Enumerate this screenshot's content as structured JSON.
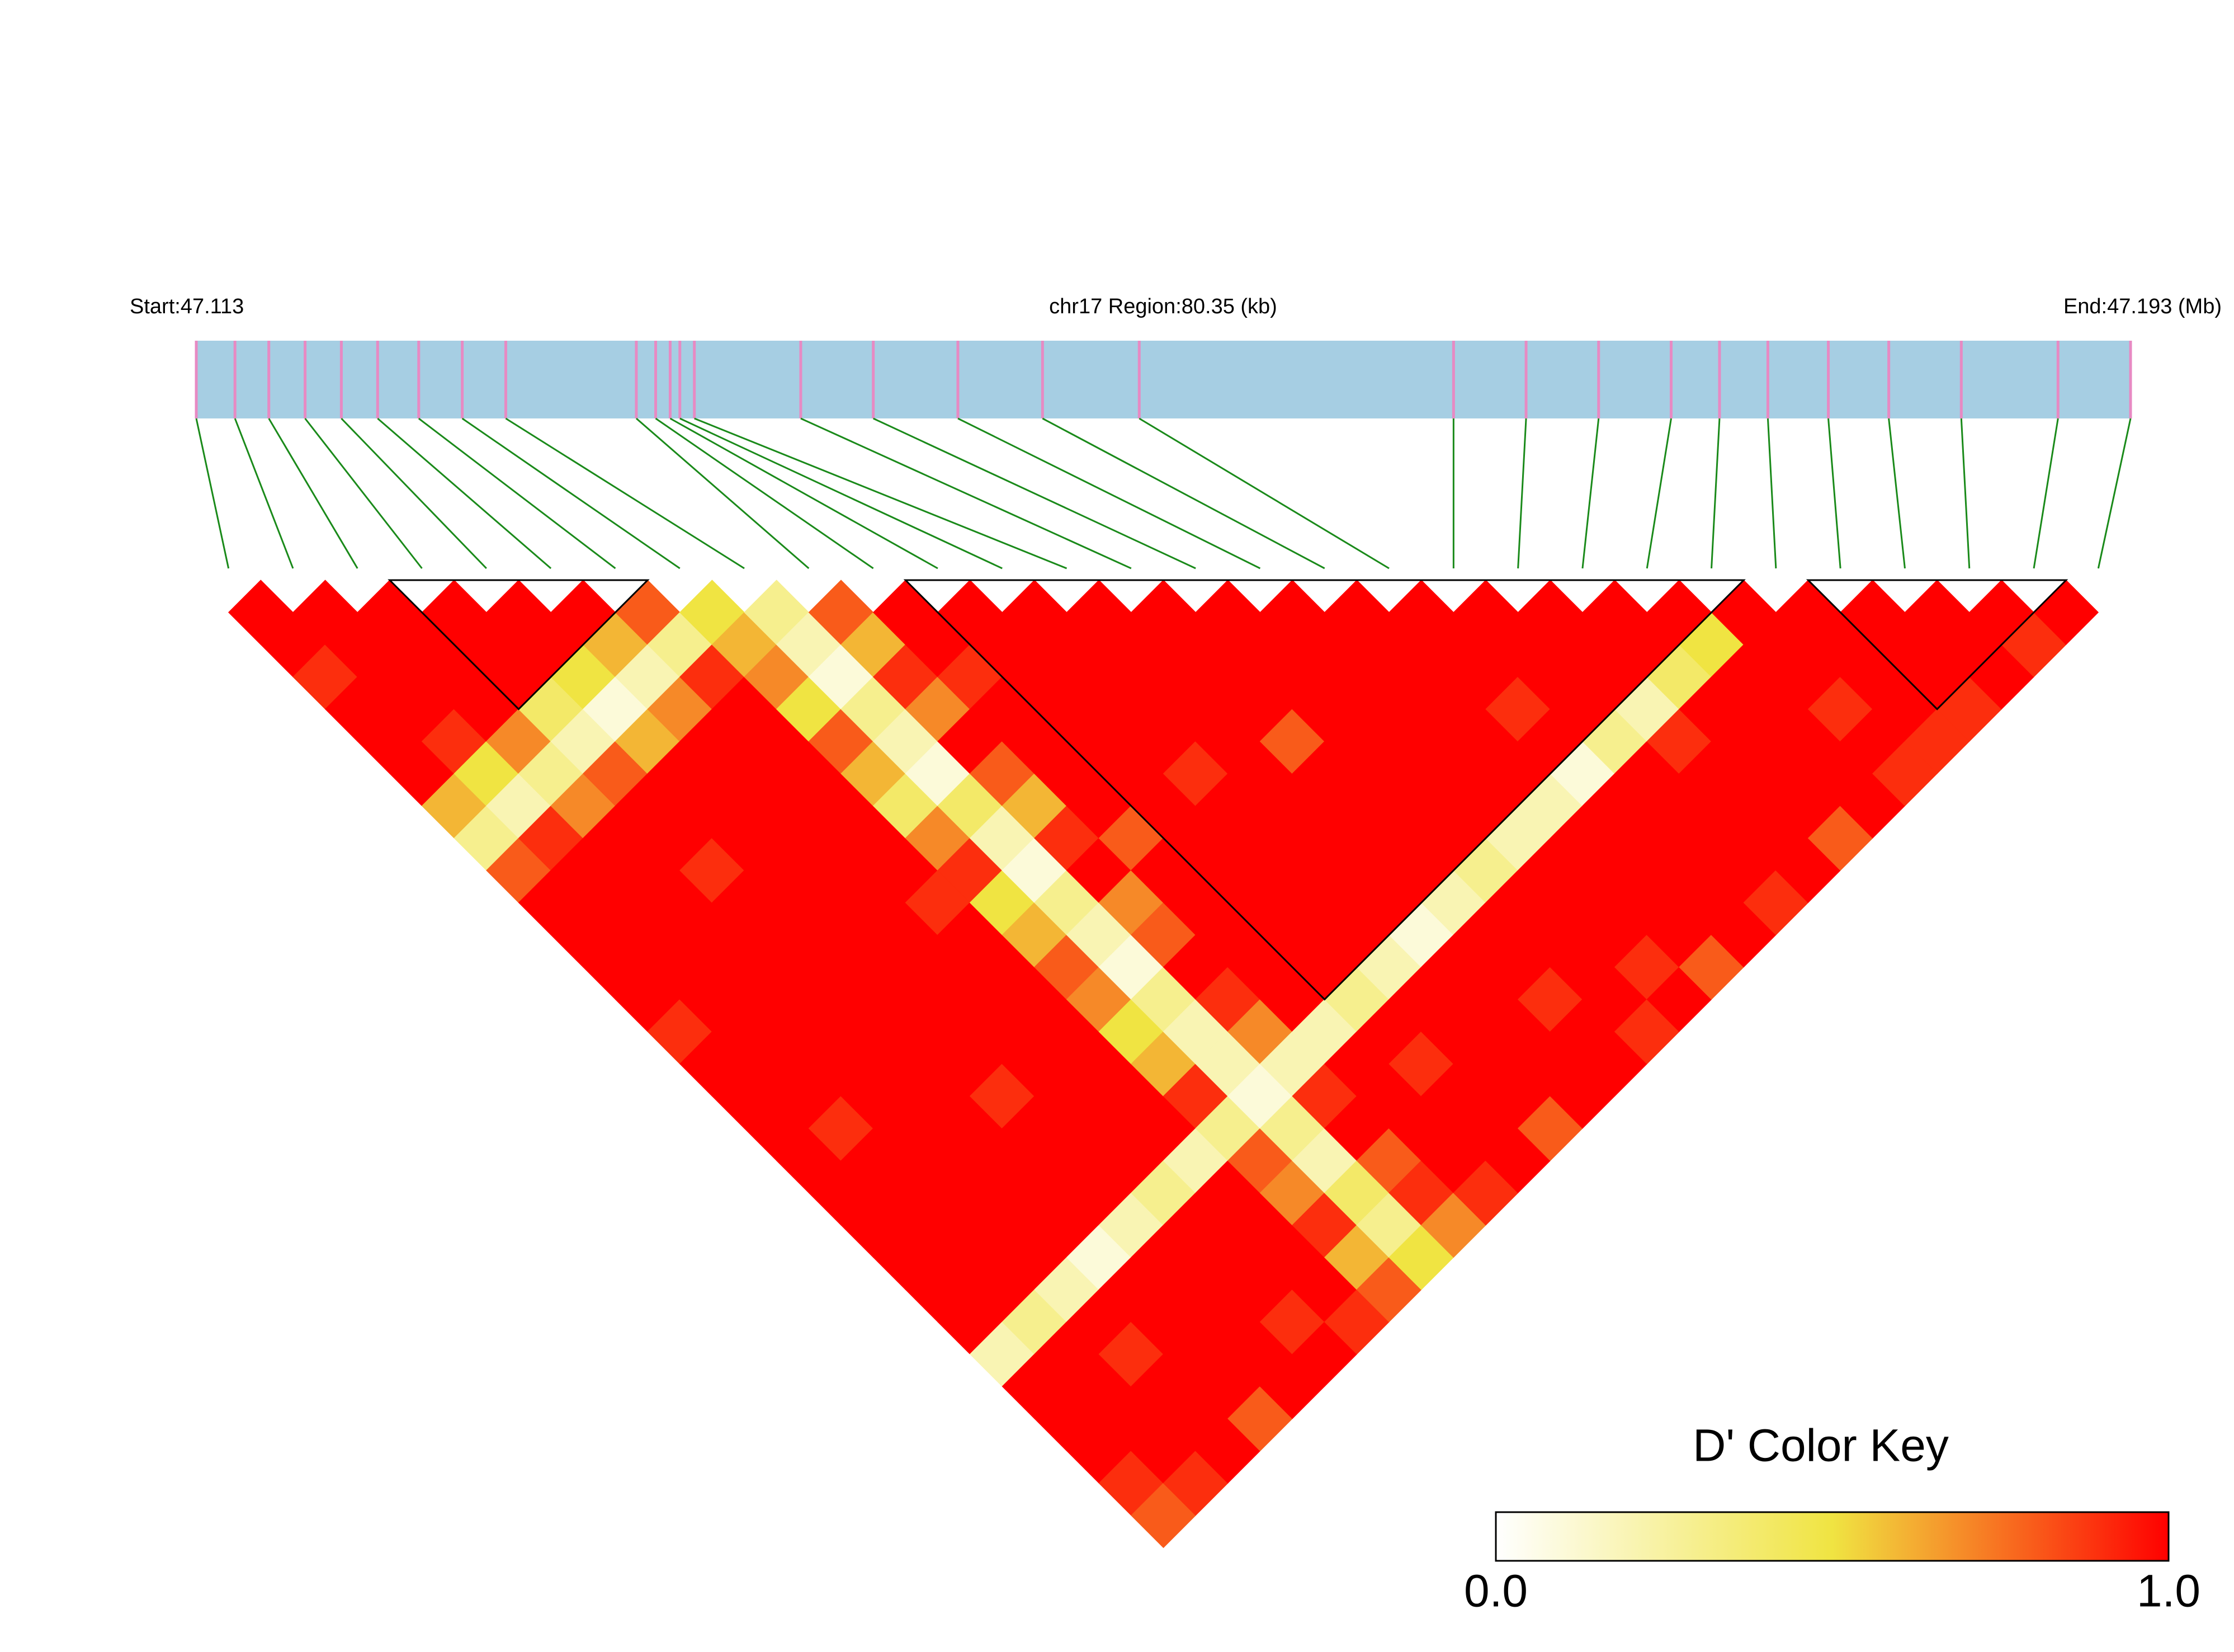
{
  "chart_data": {
    "type": "ld-heatmap",
    "start_label": "Start:47.113",
    "region_label": "chr17 Region:80.35 (kb)",
    "end_label": "End:47.193 (Mb)",
    "xlim": [
      47.113,
      47.193
    ],
    "snp_positions": [
      47.113,
      47.1146,
      47.116,
      47.1175,
      47.119,
      47.1205,
      47.1222,
      47.124,
      47.1258,
      47.1312,
      47.132,
      47.1326,
      47.133,
      47.1336,
      47.138,
      47.141,
      47.1445,
      47.148,
      47.152,
      47.165,
      47.168,
      47.171,
      47.174,
      47.176,
      47.178,
      47.1805,
      47.183,
      47.186,
      47.19,
      47.193
    ],
    "dprime": [
      [
        1,
        1,
        0.9,
        1,
        1,
        1,
        0.6,
        0.3,
        0.8,
        1,
        1,
        1,
        1,
        0.9,
        1,
        1,
        1,
        1,
        1,
        1,
        1,
        1,
        1,
        0.2,
        1,
        1,
        1,
        0.9,
        0.8
      ],
      [
        1,
        1,
        1,
        1,
        0.9,
        0.5,
        0.2,
        0.9,
        1,
        1,
        1,
        1,
        1,
        1,
        1,
        1,
        0.9,
        1,
        1,
        1,
        1,
        1,
        0.3,
        1,
        1,
        1,
        1,
        0.9
      ],
      [
        1,
        1,
        1,
        1,
        0.7,
        0.3,
        0.7,
        1,
        1,
        1,
        1,
        1,
        1,
        1,
        1,
        1,
        1,
        1,
        1,
        1,
        1,
        0.2,
        1,
        0.9,
        1,
        1,
        1
      ],
      [
        1,
        1,
        1,
        0.4,
        0.2,
        0.8,
        1,
        1,
        0.9,
        1,
        1,
        1,
        1,
        1,
        1,
        1,
        1,
        1,
        1,
        1,
        0.1,
        1,
        1,
        1,
        1,
        0.8
      ],
      [
        1,
        1,
        0.5,
        0.1,
        0.6,
        1,
        1,
        1,
        1,
        1,
        1,
        1,
        1,
        1,
        1,
        0.9,
        1,
        1,
        1,
        0.2,
        1,
        1,
        1,
        1,
        1
      ],
      [
        1,
        0.6,
        0.2,
        0.7,
        1,
        1,
        1,
        1,
        1,
        1,
        1,
        1,
        1,
        1,
        1,
        1,
        1,
        1,
        0.3,
        1,
        1,
        1,
        0.9,
        1
      ],
      [
        0.8,
        0.3,
        0.9,
        1,
        1,
        1,
        1,
        1,
        1,
        0.9,
        1,
        1,
        1,
        1,
        1,
        1,
        1,
        0.2,
        1,
        1,
        1,
        1,
        0.9
      ],
      [
        0.5,
        0.6,
        0.7,
        0.5,
        0.8,
        0.6,
        0.4,
        0.7,
        0.9,
        0.5,
        0.6,
        0.8,
        0.7,
        0.5,
        0.6,
        0.9,
        0.3,
        0.8,
        0.7,
        0.9,
        0.6,
        0.8
      ],
      [
        0.3,
        0.2,
        0.1,
        0.3,
        0.2,
        0.1,
        0.4,
        0.2,
        0.1,
        0.3,
        0.2,
        0.1,
        0.3,
        0.2,
        0.2,
        0.1,
        0.3,
        0.2,
        0.4,
        0.3,
        0.5
      ],
      [
        0.8,
        0.6,
        0.9,
        0.7,
        1,
        0.8,
        0.6,
        0.9,
        1,
        0.7,
        0.8,
        1,
        0.9,
        0.7,
        0.2,
        0.9,
        1,
        0.8,
        0.9,
        0.7
      ],
      [
        1,
        1,
        0.9,
        1,
        1,
        1,
        1,
        0.8,
        1,
        1,
        1,
        1,
        1,
        0.2,
        1,
        1,
        1,
        1,
        0.9
      ],
      [
        1,
        1,
        1,
        1,
        1,
        1,
        1,
        1,
        1,
        1,
        1,
        1,
        0.3,
        1,
        0.9,
        1,
        1,
        1
      ],
      [
        1,
        1,
        1,
        1,
        1,
        0.9,
        1,
        1,
        1,
        1,
        1,
        0.2,
        1,
        1,
        1,
        1,
        0.8
      ],
      [
        1,
        1,
        1,
        1,
        1,
        1,
        1,
        1,
        1,
        1,
        0.1,
        1,
        1,
        1,
        1,
        1
      ],
      [
        1,
        1,
        1,
        1,
        0.8,
        1,
        1,
        1,
        1,
        0.2,
        1,
        1,
        0.9,
        1,
        1
      ],
      [
        1,
        1,
        1,
        1,
        1,
        1,
        1,
        1,
        0.3,
        1,
        1,
        1,
        1,
        0.9
      ],
      [
        1,
        1,
        1,
        1,
        1,
        1,
        1,
        0.2,
        1,
        1,
        1,
        0.9,
        1
      ],
      [
        1,
        1,
        1,
        1,
        1,
        1,
        0.2,
        1,
        1,
        1,
        1,
        0.8
      ],
      [
        1,
        1,
        1,
        0.9,
        1,
        0.1,
        1,
        1,
        1,
        1,
        1
      ],
      [
        1,
        1,
        1,
        1,
        0.3,
        1,
        1,
        1,
        1,
        0.9
      ],
      [
        1,
        1,
        1,
        0.2,
        0.9,
        1,
        1,
        1,
        1
      ],
      [
        1,
        1,
        0.4,
        1,
        1,
        1,
        1,
        0.8
      ],
      [
        1,
        0.5,
        1,
        1,
        1,
        1,
        1
      ],
      [
        1,
        1,
        1,
        0.9,
        1,
        0.9
      ],
      [
        1,
        1,
        1,
        1,
        0.9
      ],
      [
        1,
        1,
        1,
        0.9
      ],
      [
        1,
        1,
        1
      ],
      [
        1,
        0.9
      ],
      [
        1
      ]
    ],
    "blocks": [
      [
        3,
        6
      ],
      [
        11,
        23
      ],
      [
        25,
        28
      ]
    ],
    "band_color": "#a6cee3",
    "snp_line_color": "#e78ac3",
    "connector_color": "#1a8a1a",
    "colorkey": {
      "title": "D' Color Key",
      "lim": [
        0,
        1
      ],
      "ticks": [
        {
          "value": 0,
          "label": "0.0"
        },
        {
          "value": 1,
          "label": "1.0"
        }
      ],
      "colors": [
        "#ffffff",
        "#f0e442",
        "#ff0000"
      ]
    }
  }
}
